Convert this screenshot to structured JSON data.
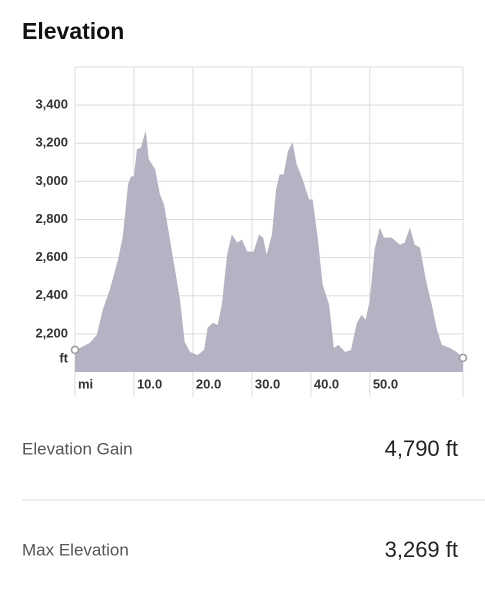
{
  "chart_data": {
    "type": "area",
    "title": "Elevation",
    "xlabel": "mi",
    "ylabel": "ft",
    "color": "#b4b3c3",
    "grid": true,
    "xlim": [
      0,
      65.8
    ],
    "ylim": [
      2000,
      3600
    ],
    "xticks": [
      {
        "value": 10,
        "label": "10.0"
      },
      {
        "value": 20,
        "label": "20.0"
      },
      {
        "value": 30,
        "label": "30.0"
      },
      {
        "value": 40,
        "label": "40.0"
      },
      {
        "value": 50,
        "label": "50.0"
      }
    ],
    "yticks": [
      {
        "value": 2200,
        "label": "2,200"
      },
      {
        "value": 2400,
        "label": "2,400"
      },
      {
        "value": 2600,
        "label": "2,600"
      },
      {
        "value": 2800,
        "label": "2,800"
      },
      {
        "value": 3000,
        "label": "3,000"
      },
      {
        "value": 3200,
        "label": "3,200"
      },
      {
        "value": 3400,
        "label": "3,400"
      }
    ],
    "x": [
      0,
      0.8,
      2.5,
      3.7,
      4.7,
      5.9,
      7.3,
      8.1,
      9.0,
      9.5,
      10,
      10.5,
      11.2,
      12.0,
      12.5,
      13.6,
      14.4,
      15.1,
      16.1,
      17.1,
      17.8,
      18.6,
      19.5,
      20.8,
      21.9,
      22.5,
      23.4,
      24.2,
      24.9,
      25.8,
      26.6,
      27.5,
      28.3,
      29.2,
      30.3,
      31.2,
      31.9,
      32.5,
      33.4,
      34.1,
      34.7,
      35.4,
      36.1,
      36.9,
      37.6,
      38.6,
      39.7,
      40.3,
      41.2,
      42.0,
      43.1,
      43.9,
      44.7,
      45.8,
      46.8,
      47.8,
      48.6,
      49.3,
      50.0,
      50.8,
      51.7,
      52.4,
      53.7,
      55.1,
      55.9,
      56.8,
      57.6,
      58.5,
      59.5,
      60.5,
      61.4,
      62.2,
      63.6,
      64.7,
      65.8
    ],
    "values": [
      2116,
      2126,
      2153,
      2195,
      2326,
      2432,
      2590,
      2710,
      2984,
      3026,
      3026,
      3168,
      3179,
      3269,
      3116,
      3063,
      2932,
      2879,
      2695,
      2511,
      2379,
      2158,
      2105,
      2089,
      2116,
      2232,
      2258,
      2247,
      2353,
      2616,
      2721,
      2679,
      2695,
      2632,
      2632,
      2721,
      2705,
      2616,
      2721,
      2958,
      3037,
      3037,
      3158,
      3205,
      3089,
      3011,
      2905,
      2905,
      2695,
      2458,
      2353,
      2126,
      2142,
      2105,
      2116,
      2258,
      2300,
      2274,
      2379,
      2642,
      2758,
      2705,
      2705,
      2668,
      2679,
      2758,
      2668,
      2653,
      2484,
      2353,
      2221,
      2142,
      2126,
      2105,
      2074
    ]
  },
  "stats": [
    {
      "label": "Elevation Gain",
      "value": "4,790 ft"
    },
    {
      "label": "Max Elevation",
      "value": "3,269 ft"
    }
  ]
}
